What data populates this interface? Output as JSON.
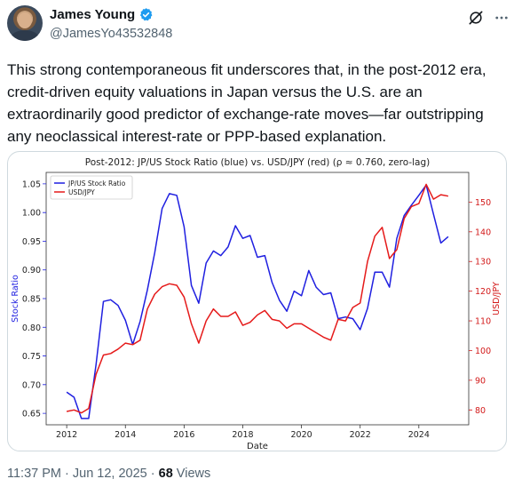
{
  "author": {
    "name": "James Young",
    "handle": "@JamesYo43532848",
    "verified_color": "#1d9bf0"
  },
  "icons": {
    "grok": "grok-icon",
    "more": "more-options-icon",
    "verified": "verified-badge-icon"
  },
  "tweet": {
    "text": "This strong contemporaneous fit underscores that, in the post-2012 era, credit-driven equity valuations in Japan versus the U.S. are an extraordinarily good predictor of exchange-rate moves—far outstripping any neoclassical interest-rate or PPP-based explanation."
  },
  "meta": {
    "time": "11:37 PM",
    "sep1": " · ",
    "date": "Jun 12, 2025",
    "sep2": " · ",
    "views_count": "68",
    "views_label": " Views"
  },
  "chart_data": {
    "type": "line",
    "title": "Post-2012: JP/US Stock Ratio (blue) vs. USD/JPY (red) (ρ ≈ 0.760, zero-lag)",
    "xlabel": "Date",
    "ylabel_left": "Stock Ratio",
    "ylabel_right": "USD/JPY",
    "xlim": [
      2011.3,
      2025.7
    ],
    "ylim_left": [
      0.63,
      1.07
    ],
    "ylim_right": [
      75,
      160
    ],
    "x_ticks": [
      2012,
      2014,
      2016,
      2018,
      2020,
      2022,
      2024
    ],
    "y_ticks_left": [
      "0.65",
      "0.70",
      "0.75",
      "0.80",
      "0.85",
      "0.90",
      "0.95",
      "1.00",
      "1.05"
    ],
    "y_ticks_right": [
      "80",
      "90",
      "100",
      "110",
      "120",
      "130",
      "140",
      "150"
    ],
    "legend_position": "top-left",
    "colors": {
      "left": "#1f1fe0",
      "right": "#e51a1a",
      "right_axis": "#d31a1a"
    },
    "series": [
      {
        "name": "JP/US Stock Ratio",
        "axis": "left",
        "color": "#1f1fe0",
        "x": [
          2012.0,
          2012.25,
          2012.5,
          2012.75,
          2013.0,
          2013.25,
          2013.5,
          2013.75,
          2014.0,
          2014.25,
          2014.5,
          2014.75,
          2015.0,
          2015.25,
          2015.5,
          2015.75,
          2016.0,
          2016.25,
          2016.5,
          2016.75,
          2017.0,
          2017.25,
          2017.5,
          2017.75,
          2018.0,
          2018.25,
          2018.5,
          2018.75,
          2019.0,
          2019.25,
          2019.5,
          2019.75,
          2020.0,
          2020.25,
          2020.5,
          2020.75,
          2021.0,
          2021.25,
          2021.5,
          2021.75,
          2022.0,
          2022.25,
          2022.5,
          2022.75,
          2023.0,
          2023.25,
          2023.5,
          2023.75,
          2024.0,
          2024.25,
          2024.5,
          2024.75,
          2025.0
        ],
        "values": [
          0.687,
          0.678,
          0.641,
          0.641,
          0.735,
          0.845,
          0.848,
          0.838,
          0.812,
          0.77,
          0.81,
          0.865,
          0.93,
          1.007,
          1.033,
          1.03,
          0.975,
          0.873,
          0.842,
          0.912,
          0.933,
          0.925,
          0.94,
          0.977,
          0.955,
          0.96,
          0.922,
          0.925,
          0.878,
          0.847,
          0.828,
          0.863,
          0.855,
          0.899,
          0.87,
          0.857,
          0.86,
          0.815,
          0.818,
          0.815,
          0.796,
          0.833,
          0.896,
          0.896,
          0.87,
          0.955,
          0.995,
          1.013,
          1.03,
          1.048,
          0.997,
          0.947,
          0.958
        ]
      },
      {
        "name": "USD/JPY",
        "axis": "right",
        "color": "#e51a1a",
        "x": [
          2012.0,
          2012.25,
          2012.5,
          2012.75,
          2013.0,
          2013.25,
          2013.5,
          2013.75,
          2014.0,
          2014.25,
          2014.5,
          2014.75,
          2015.0,
          2015.25,
          2015.5,
          2015.75,
          2016.0,
          2016.25,
          2016.5,
          2016.75,
          2017.0,
          2017.25,
          2017.5,
          2017.75,
          2018.0,
          2018.25,
          2018.5,
          2018.75,
          2019.0,
          2019.25,
          2019.5,
          2019.75,
          2020.0,
          2020.25,
          2020.5,
          2020.75,
          2021.0,
          2021.25,
          2021.5,
          2021.75,
          2022.0,
          2022.25,
          2022.5,
          2022.75,
          2023.0,
          2023.25,
          2023.5,
          2023.75,
          2024.0,
          2024.25,
          2024.5,
          2024.75,
          2025.0
        ],
        "values": [
          79.5,
          80.0,
          79.0,
          80.5,
          92.0,
          98.5,
          99.0,
          100.5,
          102.5,
          102.0,
          103.5,
          114.0,
          119.0,
          121.5,
          122.5,
          122.0,
          118.0,
          109.0,
          102.5,
          110.0,
          114.0,
          111.5,
          111.5,
          113.0,
          108.5,
          109.5,
          112.0,
          113.5,
          110.5,
          110.0,
          107.5,
          109.0,
          109.0,
          107.5,
          106.0,
          104.5,
          103.5,
          110.5,
          110.0,
          114.5,
          116.0,
          130.0,
          138.5,
          141.5,
          131.0,
          134.0,
          144.5,
          148.5,
          149.5,
          156.0,
          151.0,
          152.5,
          152.0
        ]
      }
    ]
  }
}
